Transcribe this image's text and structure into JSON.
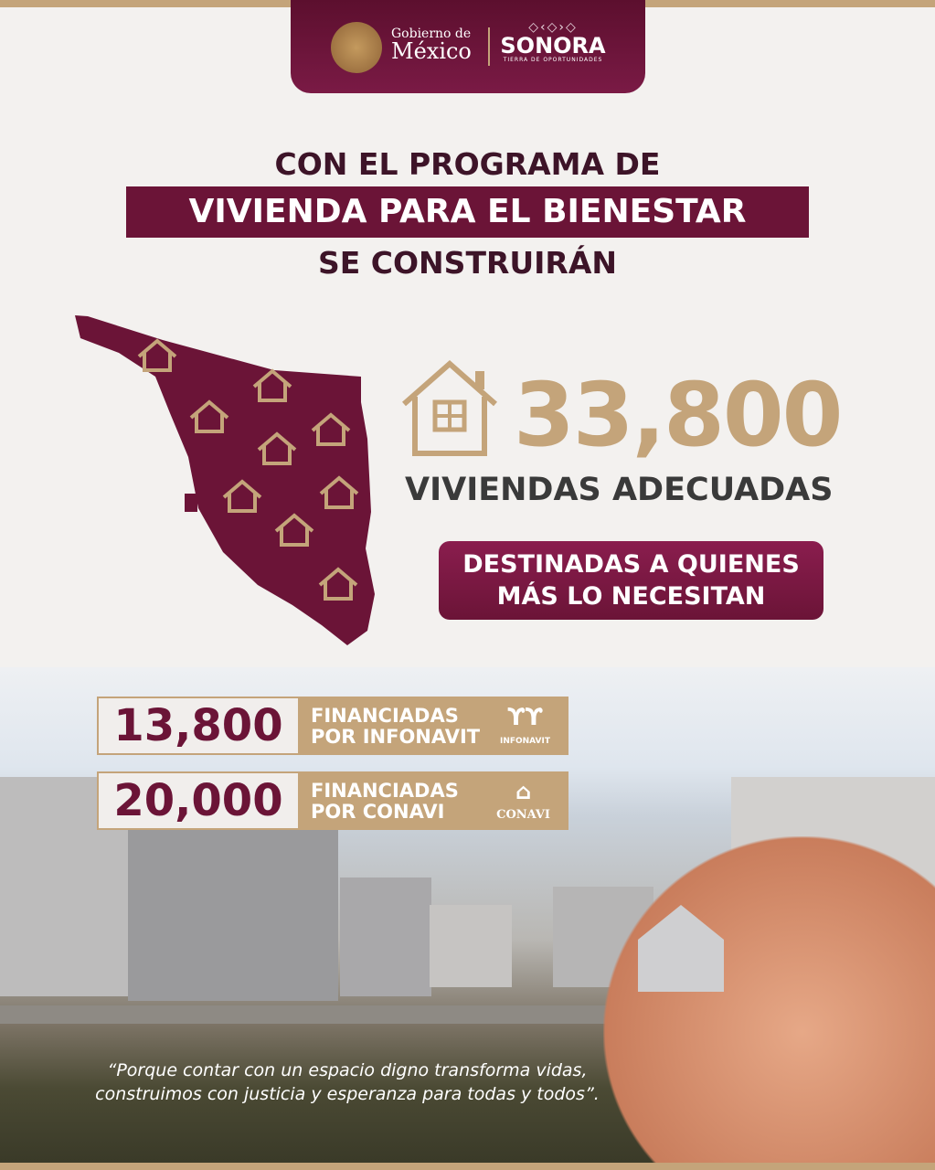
{
  "header": {
    "gob_small": "Gobierno de",
    "gob_big": "México",
    "sonora_pattern": "◇‹◇›◇",
    "sonora": "SONORA",
    "sonora_tagline": "TIERRA DE OPORTUNIDADES"
  },
  "title": {
    "line1": "CON EL PROGRAMA DE",
    "line2": "VIVIENDA PARA EL BIENESTAR",
    "line3": "SE CONSTRUIRÁN"
  },
  "stat": {
    "total": "33,800",
    "label": "VIVIENDAS ADECUADAS",
    "badge_line1": "DESTINADAS A QUIENES",
    "badge_line2": "MÁS LO NECESITAN"
  },
  "financing": [
    {
      "number": "13,800",
      "line1": "FINANCIADAS",
      "line2": "POR INFONAVIT",
      "logo": "INFONAVIT"
    },
    {
      "number": "20,000",
      "line1": "FINANCIADAS",
      "line2": "POR CONAVI",
      "logo": "CONAVI"
    }
  ],
  "quote": {
    "line1": "“Porque contar con un espacio digno transforma vidas,",
    "line2": "construimos con justicia y esperanza para todas y todos”."
  },
  "colors": {
    "maroon": "#6b1437",
    "gold": "#c4a47a",
    "text": "#3a3a3a"
  }
}
